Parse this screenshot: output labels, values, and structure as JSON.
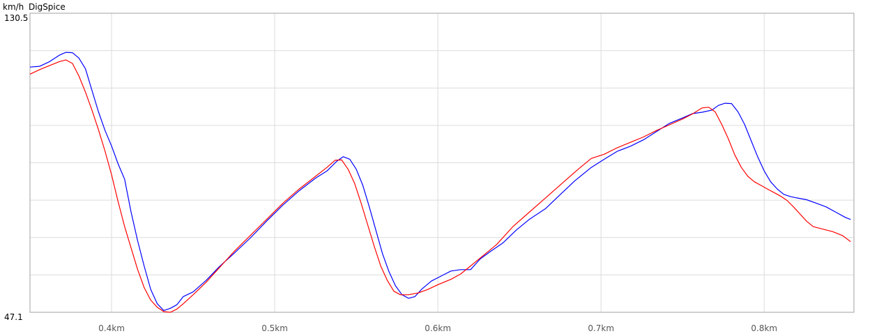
{
  "chart_data": {
    "type": "line",
    "title": "DigSpice",
    "ylabel": "km/h",
    "ytick_labels": [
      "130.5",
      "47.1"
    ],
    "ylim": [
      47.1,
      130.5
    ],
    "xlim": [
      0.35,
      0.855
    ],
    "xticks": [
      {
        "value": 0.4,
        "label": "0.4km"
      },
      {
        "value": 0.5,
        "label": "0.5km"
      },
      {
        "value": 0.6,
        "label": "0.6km"
      },
      {
        "value": 0.7,
        "label": "0.7km"
      },
      {
        "value": 0.8,
        "label": "0.8km"
      }
    ],
    "grid": true,
    "grid_y_lines": 8,
    "series": [
      {
        "color": "#0000ff",
        "points": [
          [
            0.35,
            115.5
          ],
          [
            0.356,
            115.7
          ],
          [
            0.362,
            117.0
          ],
          [
            0.368,
            118.8
          ],
          [
            0.372,
            119.6
          ],
          [
            0.376,
            119.5
          ],
          [
            0.38,
            118.0
          ],
          [
            0.384,
            115.0
          ],
          [
            0.388,
            109.0
          ],
          [
            0.392,
            103.0
          ],
          [
            0.396,
            97.8
          ],
          [
            0.4,
            93.5
          ],
          [
            0.404,
            88.5
          ],
          [
            0.408,
            84.2
          ],
          [
            0.412,
            75.0
          ],
          [
            0.416,
            67.0
          ],
          [
            0.42,
            60.0
          ],
          [
            0.424,
            53.5
          ],
          [
            0.428,
            49.5
          ],
          [
            0.432,
            47.6
          ],
          [
            0.436,
            48.2
          ],
          [
            0.44,
            49.2
          ],
          [
            0.444,
            51.5
          ],
          [
            0.45,
            52.8
          ],
          [
            0.458,
            56.0
          ],
          [
            0.466,
            59.8
          ],
          [
            0.475,
            63.5
          ],
          [
            0.485,
            67.8
          ],
          [
            0.495,
            72.5
          ],
          [
            0.505,
            77.0
          ],
          [
            0.515,
            81.0
          ],
          [
            0.525,
            84.5
          ],
          [
            0.532,
            86.5
          ],
          [
            0.538,
            89.2
          ],
          [
            0.542,
            90.5
          ],
          [
            0.546,
            89.8
          ],
          [
            0.55,
            87.0
          ],
          [
            0.554,
            82.5
          ],
          [
            0.558,
            76.5
          ],
          [
            0.562,
            70.0
          ],
          [
            0.566,
            63.5
          ],
          [
            0.57,
            58.5
          ],
          [
            0.574,
            54.5
          ],
          [
            0.578,
            52.0
          ],
          [
            0.582,
            51.0
          ],
          [
            0.586,
            51.5
          ],
          [
            0.59,
            53.5
          ],
          [
            0.596,
            55.8
          ],
          [
            0.602,
            57.2
          ],
          [
            0.608,
            58.6
          ],
          [
            0.614,
            59.0
          ],
          [
            0.62,
            59.0
          ],
          [
            0.626,
            62.0
          ],
          [
            0.632,
            64.0
          ],
          [
            0.64,
            66.5
          ],
          [
            0.648,
            70.0
          ],
          [
            0.656,
            73.0
          ],
          [
            0.666,
            76.0
          ],
          [
            0.674,
            79.5
          ],
          [
            0.684,
            83.8
          ],
          [
            0.694,
            87.5
          ],
          [
            0.702,
            89.8
          ],
          [
            0.71,
            92.0
          ],
          [
            0.718,
            93.4
          ],
          [
            0.726,
            95.2
          ],
          [
            0.734,
            97.5
          ],
          [
            0.742,
            99.8
          ],
          [
            0.75,
            101.3
          ],
          [
            0.756,
            102.5
          ],
          [
            0.762,
            102.9
          ],
          [
            0.768,
            103.5
          ],
          [
            0.772,
            104.8
          ],
          [
            0.776,
            105.4
          ],
          [
            0.78,
            105.3
          ],
          [
            0.784,
            103.0
          ],
          [
            0.788,
            99.5
          ],
          [
            0.792,
            95.0
          ],
          [
            0.796,
            90.5
          ],
          [
            0.8,
            86.5
          ],
          [
            0.804,
            83.5
          ],
          [
            0.808,
            81.5
          ],
          [
            0.812,
            80.0
          ],
          [
            0.816,
            79.4
          ],
          [
            0.82,
            79.0
          ],
          [
            0.826,
            78.5
          ],
          [
            0.832,
            77.5
          ],
          [
            0.838,
            76.5
          ],
          [
            0.844,
            75.0
          ],
          [
            0.85,
            73.5
          ],
          [
            0.853,
            73.0
          ]
        ]
      },
      {
        "color": "#ff0000",
        "points": [
          [
            0.35,
            113.5
          ],
          [
            0.356,
            114.8
          ],
          [
            0.362,
            115.9
          ],
          [
            0.368,
            117.0
          ],
          [
            0.372,
            117.5
          ],
          [
            0.376,
            116.5
          ],
          [
            0.38,
            113.0
          ],
          [
            0.384,
            108.5
          ],
          [
            0.388,
            103.5
          ],
          [
            0.392,
            98.0
          ],
          [
            0.396,
            92.0
          ],
          [
            0.4,
            85.5
          ],
          [
            0.404,
            78.0
          ],
          [
            0.408,
            71.0
          ],
          [
            0.412,
            65.0
          ],
          [
            0.416,
            59.0
          ],
          [
            0.42,
            54.0
          ],
          [
            0.424,
            50.5
          ],
          [
            0.428,
            48.5
          ],
          [
            0.432,
            47.3
          ],
          [
            0.436,
            47.1
          ],
          [
            0.44,
            48.0
          ],
          [
            0.444,
            49.5
          ],
          [
            0.45,
            52.0
          ],
          [
            0.458,
            55.5
          ],
          [
            0.466,
            59.5
          ],
          [
            0.475,
            64.0
          ],
          [
            0.485,
            68.5
          ],
          [
            0.495,
            73.0
          ],
          [
            0.505,
            77.5
          ],
          [
            0.515,
            81.5
          ],
          [
            0.525,
            85.0
          ],
          [
            0.532,
            87.5
          ],
          [
            0.537,
            89.5
          ],
          [
            0.541,
            89.6
          ],
          [
            0.545,
            87.0
          ],
          [
            0.549,
            83.0
          ],
          [
            0.553,
            77.5
          ],
          [
            0.557,
            71.5
          ],
          [
            0.561,
            65.5
          ],
          [
            0.565,
            60.0
          ],
          [
            0.569,
            56.0
          ],
          [
            0.573,
            53.0
          ],
          [
            0.577,
            52.0
          ],
          [
            0.582,
            52.0
          ],
          [
            0.588,
            52.5
          ],
          [
            0.594,
            53.5
          ],
          [
            0.6,
            54.8
          ],
          [
            0.608,
            56.3
          ],
          [
            0.614,
            57.8
          ],
          [
            0.62,
            60.0
          ],
          [
            0.628,
            63.0
          ],
          [
            0.636,
            66.0
          ],
          [
            0.646,
            71.0
          ],
          [
            0.656,
            75.0
          ],
          [
            0.666,
            79.0
          ],
          [
            0.676,
            83.0
          ],
          [
            0.686,
            87.0
          ],
          [
            0.694,
            90.0
          ],
          [
            0.702,
            91.2
          ],
          [
            0.71,
            93.0
          ],
          [
            0.718,
            94.5
          ],
          [
            0.726,
            96.0
          ],
          [
            0.734,
            97.8
          ],
          [
            0.742,
            99.4
          ],
          [
            0.75,
            101.0
          ],
          [
            0.756,
            102.4
          ],
          [
            0.762,
            104.1
          ],
          [
            0.766,
            104.3
          ],
          [
            0.77,
            103.0
          ],
          [
            0.774,
            99.5
          ],
          [
            0.778,
            95.5
          ],
          [
            0.782,
            91.0
          ],
          [
            0.786,
            87.5
          ],
          [
            0.79,
            85.0
          ],
          [
            0.794,
            83.5
          ],
          [
            0.798,
            82.5
          ],
          [
            0.802,
            81.5
          ],
          [
            0.806,
            80.5
          ],
          [
            0.81,
            79.5
          ],
          [
            0.814,
            78.3
          ],
          [
            0.818,
            76.5
          ],
          [
            0.822,
            74.5
          ],
          [
            0.826,
            72.5
          ],
          [
            0.83,
            71.0
          ],
          [
            0.836,
            70.3
          ],
          [
            0.842,
            69.6
          ],
          [
            0.848,
            68.5
          ],
          [
            0.853,
            66.8
          ]
        ]
      }
    ]
  }
}
